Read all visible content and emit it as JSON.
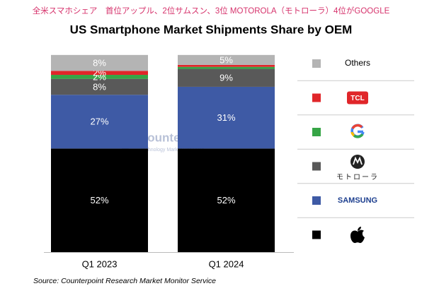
{
  "chart_data": {
    "type": "stacked-bar",
    "header": "全米スマホシェア　首位アップル、2位サムスン、3位 MOTOROLA（モトローラ）4位がGOOGLE",
    "title": "US Smartphone Market Shipments Share by OEM",
    "source": "Source: Counterpoint Research Market Monitor Service",
    "watermark": [
      "Counterpoint",
      "Technology Market Research"
    ],
    "categories": [
      "Q1 2023",
      "Q1 2024"
    ],
    "ylim": [
      0,
      100
    ],
    "series": [
      {
        "color": "#000000",
        "values": [
          52,
          52
        ],
        "value_labels": [
          "52%",
          "52%"
        ]
      },
      {
        "name": "SAMSUNG",
        "color": "#3e5aa5",
        "values": [
          27,
          31
        ],
        "value_labels": [
          "27%",
          "31%"
        ]
      },
      {
        "name": "モトローラ",
        "color": "#595959",
        "values": [
          8,
          9
        ],
        "value_labels": [
          "8%",
          "9%"
        ]
      },
      {
        "color": "#36a546",
        "values": [
          2,
          1
        ],
        "value_labels": [
          "2%",
          null
        ]
      },
      {
        "name": "TCL",
        "color": "#e0262a",
        "values": [
          2,
          1
        ],
        "value_labels": [
          "2%",
          null
        ]
      },
      {
        "name": "Others",
        "color": "#b4b4b4",
        "values": [
          8,
          5
        ],
        "value_labels": [
          "8%",
          "5%"
        ]
      }
    ]
  }
}
